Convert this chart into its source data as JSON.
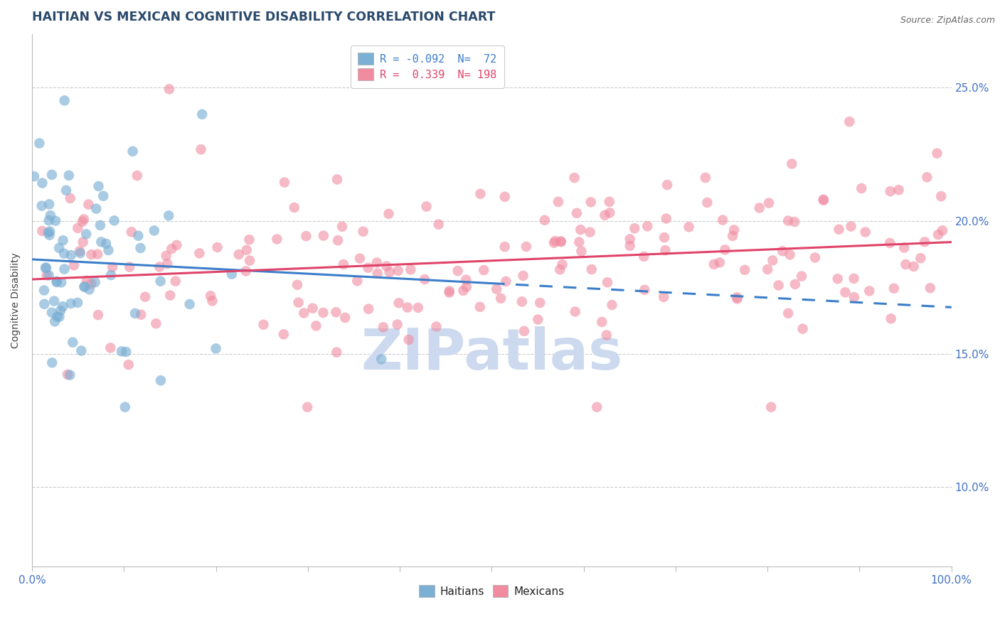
{
  "title": "HAITIAN VS MEXICAN COGNITIVE DISABILITY CORRELATION CHART",
  "title_color": "#2b4a6b",
  "title_fontsize": 12.5,
  "source_text": "Source: ZipAtlas.com",
  "ylabel": "Cognitive Disability",
  "ylabel_fontsize": 10,
  "ylabel_color": "#444444",
  "xlim": [
    0.0,
    1.0
  ],
  "ylim": [
    0.07,
    0.27
  ],
  "ytick_vals": [
    0.1,
    0.15,
    0.2,
    0.25
  ],
  "ytick_labels": [
    "10.0%",
    "15.0%",
    "20.0%",
    "25.0%"
  ],
  "xtick_vals": [
    0.0,
    0.1,
    0.2,
    0.3,
    0.4,
    0.5,
    0.6,
    0.7,
    0.8,
    0.9,
    1.0
  ],
  "xtick_edge_labels": [
    "0.0%",
    "100.0%"
  ],
  "tick_color": "#4472c4",
  "background_color": "#ffffff",
  "grid_color": "#cccccc",
  "watermark": "ZIPatlas",
  "watermark_color": "#ccd9ee",
  "haitian_scatter_color": "#7bafd4",
  "mexican_scatter_color": "#f08ba0",
  "haitian_line_color": "#3b7ec9",
  "mexican_line_color": "#e0436a",
  "haitian_R": -0.092,
  "haitian_N": 72,
  "mexican_R": 0.339,
  "mexican_N": 198,
  "haitian_line_x_solid_end": 0.5,
  "haitian_intercept": 0.1855,
  "haitian_slope": -0.018,
  "mexican_intercept": 0.178,
  "mexican_slope": 0.014,
  "figsize": [
    14.06,
    8.92
  ],
  "dpi": 100
}
